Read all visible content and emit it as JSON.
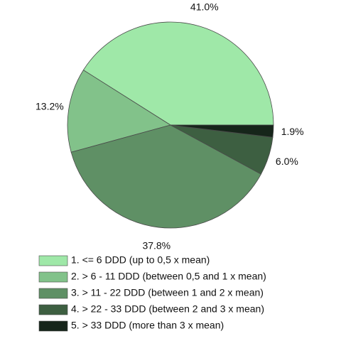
{
  "chart_data": {
    "type": "pie",
    "categories": [
      "1. <= 6 DDD (up to 0,5 x mean)",
      "2. > 6 - 11 DDD (between 0,5 and 1 x mean)",
      "3. > 11 - 22 DDD (between 1 and 2 x mean)",
      "4. > 22 - 33 DDD (between 2 and 3 x mean)",
      "5. > 33 DDD (more than 3 x mean)"
    ],
    "values": [
      41.0,
      13.2,
      37.8,
      6.0,
      1.9
    ],
    "value_labels": [
      "41.0%",
      "13.2%",
      "37.8%",
      "6.0%",
      "1.9%"
    ],
    "colors": [
      "#9fe8a8",
      "#82c28a",
      "#5f9065",
      "#3d5f41",
      "#16251a"
    ]
  }
}
